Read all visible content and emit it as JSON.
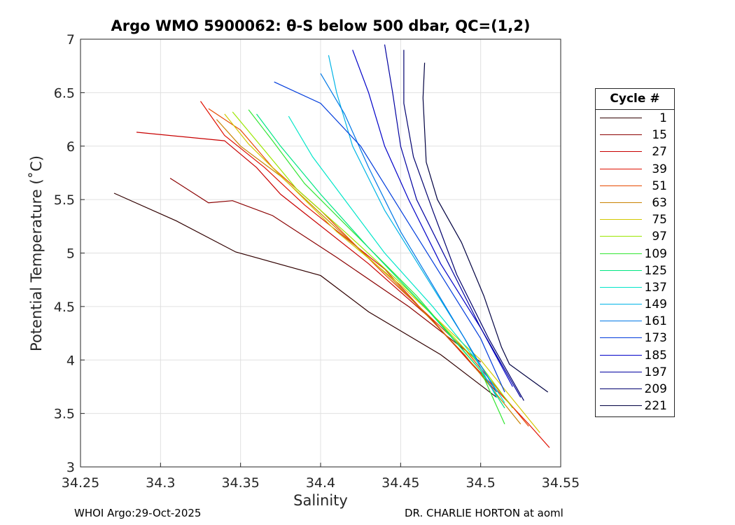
{
  "chart_data": {
    "type": "line",
    "title": "Argo WMO 5900062: θ-S below 500 dbar,  QC=(1,2)",
    "xlabel": "Salinity",
    "ylabel": "Potential Temperature (˚C)",
    "xlim": [
      34.25,
      34.55
    ],
    "ylim": [
      3,
      7
    ],
    "xticks": [
      "34.25",
      "34.3",
      "34.35",
      "34.4",
      "34.45",
      "34.5",
      "34.55"
    ],
    "yticks": [
      "3",
      "3.5",
      "4",
      "4.5",
      "5",
      "5.5",
      "6",
      "6.5",
      "7"
    ],
    "grid": true,
    "legend_title": "Cycle #",
    "legend_position": "right",
    "series": [
      {
        "name": "1",
        "color": "#300000",
        "x": [
          34.271,
          34.31,
          34.347,
          34.4,
          34.43,
          34.475,
          34.51
        ],
        "y": [
          5.56,
          5.3,
          5.01,
          4.79,
          4.45,
          4.05,
          3.65
        ]
      },
      {
        "name": "15",
        "color": "#8a0000",
        "x": [
          34.306,
          34.33,
          34.345,
          34.37,
          34.41,
          34.455,
          34.5
        ],
        "y": [
          5.7,
          5.47,
          5.49,
          5.35,
          4.96,
          4.5,
          3.98
        ]
      },
      {
        "name": "27",
        "color": "#c80000",
        "x": [
          34.285,
          34.34,
          34.36,
          34.375,
          34.43,
          34.47,
          34.51
        ],
        "y": [
          6.13,
          6.05,
          5.8,
          5.55,
          4.9,
          4.37,
          3.7
        ]
      },
      {
        "name": "39",
        "color": "#e01000",
        "x": [
          34.325,
          34.34,
          34.365,
          34.39,
          34.44,
          34.48,
          34.53,
          34.543
        ],
        "y": [
          6.42,
          6.1,
          5.8,
          5.45,
          4.85,
          4.2,
          3.4,
          3.18
        ]
      },
      {
        "name": "51",
        "color": "#e64800",
        "x": [
          34.33,
          34.35,
          34.37,
          34.4,
          34.44,
          34.49,
          34.53
        ],
        "y": [
          6.35,
          6.15,
          5.8,
          5.4,
          4.8,
          4.1,
          3.38
        ]
      },
      {
        "name": "63",
        "color": "#c88200",
        "x": [
          34.335,
          34.35,
          34.375,
          34.405,
          34.445,
          34.49,
          34.525
        ],
        "y": [
          6.25,
          6.0,
          5.72,
          5.3,
          4.75,
          4.05,
          3.4
        ]
      },
      {
        "name": "75",
        "color": "#d2c800",
        "x": [
          34.34,
          34.355,
          34.38,
          34.41,
          34.45,
          34.5,
          34.537
        ],
        "y": [
          6.3,
          6.02,
          5.65,
          5.2,
          4.7,
          4.0,
          3.32
        ]
      },
      {
        "name": "97",
        "color": "#9be600",
        "x": [
          34.345,
          34.36,
          34.385,
          34.415,
          34.455,
          34.5,
          34.52
        ],
        "y": [
          6.32,
          6.05,
          5.6,
          5.2,
          4.65,
          3.95,
          3.55
        ]
      },
      {
        "name": "109",
        "color": "#32e632",
        "x": [
          34.355,
          34.37,
          34.39,
          34.42,
          34.46,
          34.5,
          34.515
        ],
        "y": [
          6.34,
          6.05,
          5.65,
          5.2,
          4.6,
          3.9,
          3.4
        ]
      },
      {
        "name": "125",
        "color": "#00e682",
        "x": [
          34.36,
          34.375,
          34.4,
          34.43,
          34.465,
          34.5,
          34.515
        ],
        "y": [
          6.3,
          6.0,
          5.55,
          5.05,
          4.5,
          3.9,
          3.55
        ]
      },
      {
        "name": "137",
        "color": "#00e6c8",
        "x": [
          34.38,
          34.395,
          34.415,
          34.44,
          34.47,
          34.5,
          34.515
        ],
        "y": [
          6.28,
          5.9,
          5.5,
          5.0,
          4.5,
          3.95,
          3.6
        ]
      },
      {
        "name": "149",
        "color": "#00b4e6",
        "x": [
          34.405,
          34.41,
          34.42,
          34.44,
          34.465,
          34.49,
          34.51
        ],
        "y": [
          6.85,
          6.5,
          6.0,
          5.4,
          4.8,
          4.2,
          3.65
        ]
      },
      {
        "name": "161",
        "color": "#0078e6",
        "x": [
          34.4,
          34.415,
          34.43,
          34.45,
          34.47,
          34.49,
          34.51
        ],
        "y": [
          6.68,
          6.3,
          5.8,
          5.2,
          4.7,
          4.2,
          3.7
        ]
      },
      {
        "name": "173",
        "color": "#003cdc",
        "x": [
          34.371,
          34.4,
          34.425,
          34.45,
          34.475,
          34.5,
          34.515
        ],
        "y": [
          6.6,
          6.4,
          6.0,
          5.4,
          4.8,
          4.2,
          3.7
        ]
      },
      {
        "name": "185",
        "color": "#0000c8",
        "x": [
          34.42,
          34.43,
          34.44,
          34.455,
          34.475,
          34.5,
          34.52
        ],
        "y": [
          6.9,
          6.5,
          6.0,
          5.5,
          4.9,
          4.3,
          3.75
        ]
      },
      {
        "name": "197",
        "color": "#0000a0",
        "x": [
          34.44,
          34.445,
          34.45,
          34.46,
          34.48,
          34.5,
          34.525
        ],
        "y": [
          6.95,
          6.5,
          6.0,
          5.5,
          4.9,
          4.3,
          3.65
        ]
      },
      {
        "name": "209",
        "color": "#00006e",
        "x": [
          34.452,
          34.452,
          34.458,
          34.47,
          34.485,
          34.505,
          34.527
        ],
        "y": [
          6.9,
          6.4,
          5.9,
          5.4,
          4.8,
          4.2,
          3.62
        ]
      },
      {
        "name": "221",
        "color": "#000041",
        "x": [
          34.465,
          34.464,
          34.466,
          34.473,
          34.488,
          34.502,
          34.513,
          34.518,
          34.542
        ],
        "y": [
          6.78,
          6.45,
          5.85,
          5.5,
          5.1,
          4.6,
          4.12,
          3.96,
          3.7
        ]
      }
    ]
  },
  "footer": {
    "left": "WHOI Argo:29-Oct-2025",
    "right": "DR. CHARLIE HORTON at aoml"
  }
}
